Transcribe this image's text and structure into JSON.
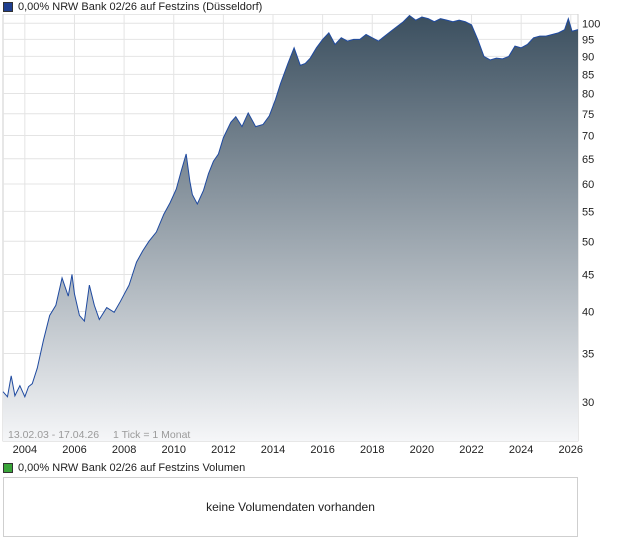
{
  "price_legend": {
    "label": "0,00% NRW Bank 02/26 auf Festzins (Düsseldorf)",
    "color": "#1f3f8f"
  },
  "volume_legend": {
    "label": "0,00% NRW Bank 02/26 auf Festzins Volumen",
    "color": "#3aa53a"
  },
  "volume_panel": {
    "message": "keine Volumendaten vorhanden"
  },
  "chart_info": {
    "date_range": "13.02.03 - 17.04.26",
    "tick_info": "1 Tick = 1 Monat"
  },
  "chart_data": {
    "type": "area",
    "title": "",
    "xlabel": "",
    "ylabel": "",
    "y_scale": "log",
    "ylim": [
      26.5,
      103
    ],
    "xlim": [
      2003.12,
      2026.29
    ],
    "x_ticks": [
      2004,
      2006,
      2008,
      2010,
      2012,
      2014,
      2016,
      2018,
      2020,
      2022,
      2024,
      2026
    ],
    "y_ticks": [
      30,
      35,
      40,
      45,
      50,
      55,
      60,
      65,
      70,
      75,
      80,
      85,
      90,
      95,
      100
    ],
    "grid": true,
    "line_color": "#1f4aa0",
    "fill_top_color": "#3b4f5f",
    "fill_bottom_color": "#f5f6f8",
    "series": [
      {
        "name": "0,00% NRW Bank 02/26 auf Festzins (Düsseldorf)",
        "x": [
          2003.12,
          2003.3,
          2003.45,
          2003.6,
          2003.8,
          2004.0,
          2004.15,
          2004.3,
          2004.5,
          2004.75,
          2005.0,
          2005.25,
          2005.5,
          2005.75,
          2005.9,
          2006.0,
          2006.2,
          2006.4,
          2006.6,
          2006.8,
          2007.0,
          2007.3,
          2007.6,
          2007.85,
          2008.2,
          2008.5,
          2008.75,
          2009.0,
          2009.3,
          2009.6,
          2009.85,
          2010.1,
          2010.3,
          2010.5,
          2010.65,
          2010.75,
          2010.95,
          2011.2,
          2011.4,
          2011.6,
          2011.8,
          2012.0,
          2012.3,
          2012.5,
          2012.75,
          2013.0,
          2013.3,
          2013.6,
          2013.85,
          2014.1,
          2014.3,
          2014.6,
          2014.85,
          2015.1,
          2015.3,
          2015.5,
          2015.75,
          2016.0,
          2016.25,
          2016.5,
          2016.75,
          2017.0,
          2017.25,
          2017.5,
          2017.75,
          2018.0,
          2018.25,
          2018.5,
          2018.75,
          2019.0,
          2019.25,
          2019.5,
          2019.75,
          2020.0,
          2020.25,
          2020.5,
          2020.75,
          2021.0,
          2021.25,
          2021.5,
          2021.75,
          2022.0,
          2022.25,
          2022.5,
          2022.75,
          2023.0,
          2023.25,
          2023.5,
          2023.75,
          2024.0,
          2024.25,
          2024.5,
          2024.75,
          2025.0,
          2025.25,
          2025.5,
          2025.75,
          2025.9,
          2026.05,
          2026.29
        ],
        "values": [
          31.0,
          30.5,
          32.6,
          30.6,
          31.6,
          30.5,
          31.5,
          31.8,
          33.4,
          36.5,
          39.5,
          40.8,
          44.5,
          42.0,
          45.0,
          42.3,
          39.5,
          38.8,
          43.5,
          40.8,
          39.0,
          40.5,
          39.9,
          41.3,
          43.5,
          46.8,
          48.5,
          50.0,
          51.5,
          54.5,
          56.5,
          59.0,
          62.5,
          66.0,
          60.5,
          58.0,
          56.3,
          58.8,
          62.0,
          64.5,
          66.0,
          69.5,
          73.0,
          74.3,
          72.0,
          75.2,
          72.0,
          72.5,
          74.5,
          78.5,
          82.5,
          88.0,
          92.5,
          87.5,
          88.0,
          89.5,
          92.5,
          95.0,
          97.0,
          93.5,
          95.5,
          94.5,
          95.0,
          95.0,
          96.5,
          95.5,
          94.5,
          96.0,
          97.5,
          99.0,
          100.5,
          102.5,
          101.0,
          102.0,
          101.5,
          100.5,
          101.5,
          101.0,
          100.5,
          101.0,
          100.5,
          99.5,
          95.0,
          90.0,
          89.0,
          89.5,
          89.3,
          90.0,
          93.0,
          92.5,
          93.5,
          95.5,
          96.0,
          96.0,
          96.5,
          97.0,
          98.0,
          101.5,
          97.5,
          98.0
        ]
      }
    ]
  }
}
